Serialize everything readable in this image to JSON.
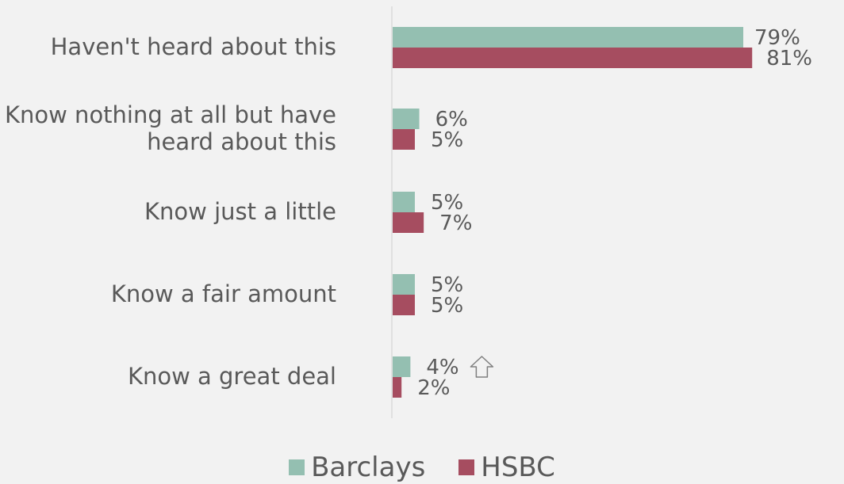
{
  "chart_data": {
    "type": "bar",
    "orientation": "horizontal",
    "categories": [
      "Haven't heard about this",
      "Know nothing at all but have heard about this",
      "Know just a little",
      "Know a fair amount",
      "Know a great deal"
    ],
    "category_lines": [
      [
        "Haven't heard about this"
      ],
      [
        "Know nothing at all but have",
        "heard about this"
      ],
      [
        "Know just a little"
      ],
      [
        "Know a fair amount"
      ],
      [
        "Know a great deal"
      ]
    ],
    "series": [
      {
        "name": "Barclays",
        "color": "#94bfb1",
        "values": [
          79,
          6,
          5,
          5,
          4
        ],
        "labels": [
          "79%",
          "6%",
          "5%",
          "5%",
          "4%"
        ]
      },
      {
        "name": "HSBC",
        "color": "#a64d60",
        "values": [
          81,
          5,
          7,
          5,
          2
        ],
        "labels": [
          "81%",
          "5%",
          "7%",
          "5%",
          "2%"
        ]
      }
    ],
    "xlim": [
      0,
      84
    ],
    "legend_position": "bottom",
    "annotations": [
      {
        "category_index": 4,
        "series_index": 0,
        "icon": "up-arrow-outline-icon",
        "meaning": "significant increase"
      }
    ],
    "grid": false
  },
  "legend": {
    "items": [
      {
        "label": "Barclays",
        "color": "#94bfb1"
      },
      {
        "label": "HSBC",
        "color": "#a64d60"
      }
    ]
  }
}
